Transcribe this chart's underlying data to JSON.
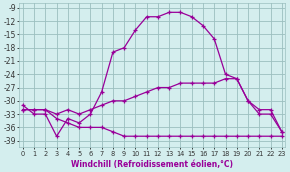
{
  "xlabel": "Windchill (Refroidissement éolien,°C)",
  "hours": [
    0,
    1,
    2,
    3,
    4,
    5,
    6,
    7,
    8,
    9,
    10,
    11,
    12,
    13,
    14,
    15,
    16,
    17,
    18,
    19,
    20,
    21,
    22,
    23
  ],
  "line1": [
    -31,
    -33,
    -33,
    -38,
    -34,
    -35,
    -33,
    -28,
    -19,
    -18,
    -14,
    -11,
    -11,
    -10,
    -10,
    -11,
    -13,
    -16,
    -24,
    -25,
    -30,
    -33,
    -33,
    -37
  ],
  "line2": [
    -32,
    -32,
    -32,
    -33,
    -32,
    -33,
    -32,
    -31,
    -30,
    -30,
    -29,
    -28,
    -27,
    -27,
    -26,
    -26,
    -26,
    -26,
    -25,
    -25,
    -30,
    -32,
    -32,
    -37
  ],
  "line3": [
    -32,
    -32,
    -32,
    -34,
    -35,
    -36,
    -36,
    -36,
    -37,
    -38,
    -38,
    -38,
    -38,
    -38,
    -38,
    -38,
    -38,
    -38,
    -38,
    -38,
    -38,
    -38,
    -38,
    -38
  ],
  "line_color": "#990099",
  "bg_color": "#d4eeee",
  "grid_color": "#9bbfbf",
  "ylim": [
    -40.5,
    -8
  ],
  "yticks": [
    -9,
    -12,
    -15,
    -18,
    -21,
    -24,
    -27,
    -30,
    -33,
    -36,
    -39
  ],
  "xlim": [
    -0.3,
    23.3
  ]
}
